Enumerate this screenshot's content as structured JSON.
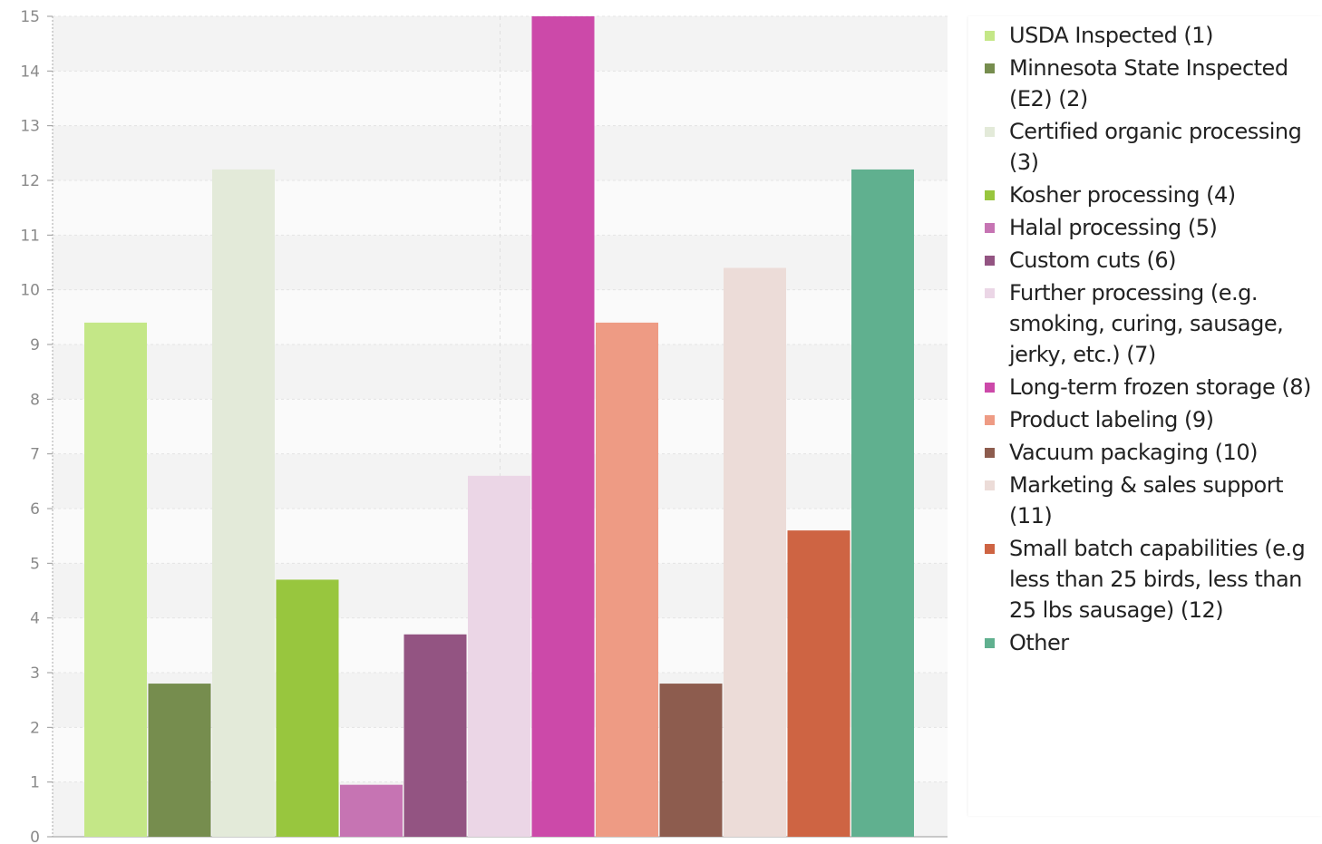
{
  "chart_data": {
    "type": "bar",
    "title": "",
    "xlabel": "",
    "ylabel": "",
    "ylim": [
      0,
      15
    ],
    "yticks": [
      0,
      1,
      2,
      3,
      4,
      5,
      6,
      7,
      8,
      9,
      10,
      11,
      12,
      13,
      14,
      15
    ],
    "grid": true,
    "legend_placement": "right",
    "categories": [
      "USDA Inspected (1)",
      "Minnesota State Inspected (E2) (2)",
      "Certified organic processing (3)",
      "Kosher processing (4)",
      "Halal processing (5)",
      "Custom cuts (6)",
      "Further processing (e.g. smoking, curing, sausage, jerky, etc.) (7)",
      "Long-term frozen storage (8)",
      "Product labeling (9)",
      "Vacuum packaging (10)",
      "Marketing & sales support (11)",
      "Small batch capabilities (e.g less than 25 birds, less than 25 lbs sausage) (12)",
      "Other"
    ],
    "values": [
      9.4,
      2.8,
      12.2,
      4.7,
      0.95,
      3.7,
      6.6,
      15,
      9.4,
      2.8,
      10.4,
      5.6,
      12.2
    ],
    "colors": [
      "#c4e787",
      "#768d4e",
      "#e3ead9",
      "#98c63e",
      "#c674b3",
      "#935482",
      "#ebd6e6",
      "#cc49a9",
      "#ee9b84",
      "#8d5c4e",
      "#ecdcd8",
      "#ce6443",
      "#60b08f"
    ]
  }
}
